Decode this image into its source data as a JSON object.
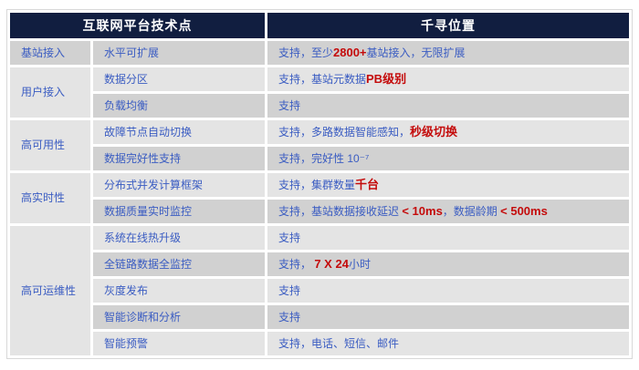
{
  "colors": {
    "header_bg": "#111e40",
    "header_text": "#ffffff",
    "row_dark": "#d1d1d1",
    "row_light": "#e4e4e4",
    "text_blue": "#3a5cc2",
    "accent_red": "#c40b0b"
  },
  "table": {
    "header": {
      "left": "互联网平台技术点",
      "right": "千寻位置"
    },
    "groups": [
      {
        "category": "基站接入",
        "rows": [
          {
            "feature": "水平可扩展",
            "value": [
              {
                "t": "支持，至少"
              },
              {
                "t": "2800+",
                "em": true
              },
              {
                "t": "基站接入，无限扩展"
              }
            ]
          }
        ]
      },
      {
        "category": "用户接入",
        "rows": [
          {
            "feature": "数据分区",
            "value": [
              {
                "t": "支持，基站元数据"
              },
              {
                "t": "PB级别",
                "em": true
              }
            ]
          },
          {
            "feature": "负载均衡",
            "value": [
              {
                "t": "支持"
              }
            ]
          }
        ]
      },
      {
        "category": "高可用性",
        "rows": [
          {
            "feature": "故障节点自动切换",
            "value": [
              {
                "t": "支持，多路数据智能感知，"
              },
              {
                "t": "秒级切换",
                "em": true
              }
            ]
          },
          {
            "feature": "数据完好性支持",
            "value": [
              {
                "t": "支持，完好性 10⁻⁷"
              }
            ]
          }
        ]
      },
      {
        "category": "高实时性",
        "rows": [
          {
            "feature": "分布式并发计算框架",
            "value": [
              {
                "t": "支持，集群数量"
              },
              {
                "t": "千台",
                "em": true
              }
            ]
          },
          {
            "feature": "数据质量实时监控",
            "value": [
              {
                "t": "支持，基站数据接收延迟 "
              },
              {
                "t": "< 10ms",
                "em": true
              },
              {
                "t": "，数据龄期 "
              },
              {
                "t": "< 500ms",
                "em": true
              }
            ]
          }
        ]
      },
      {
        "category": "高可运维性",
        "rows": [
          {
            "feature": "系统在线热升级",
            "value": [
              {
                "t": "支持"
              }
            ]
          },
          {
            "feature": "全链路数据全监控",
            "value": [
              {
                "t": "支持， "
              },
              {
                "t": "7 X 24",
                "em": true
              },
              {
                "t": "小时"
              }
            ]
          },
          {
            "feature": "灰度发布",
            "value": [
              {
                "t": "支持"
              }
            ]
          },
          {
            "feature": "智能诊断和分析",
            "value": [
              {
                "t": "支持"
              }
            ]
          },
          {
            "feature": "智能预警",
            "value": [
              {
                "t": "支持，电话、短信、邮件"
              }
            ]
          }
        ]
      }
    ]
  }
}
